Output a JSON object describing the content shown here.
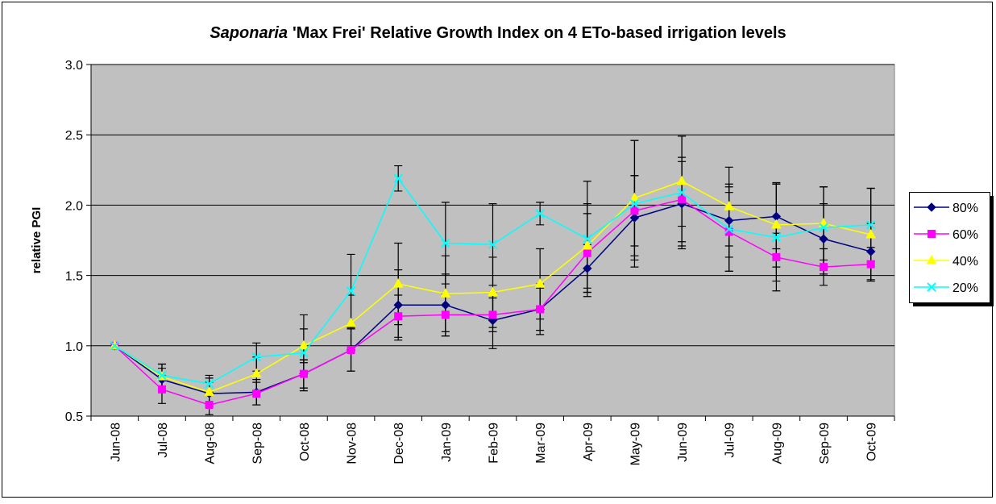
{
  "chart_data": {
    "type": "line",
    "title": [
      "Saponaria",
      "'Max Frei' Relative Growth Index on 4 ETo-based irrigation levels"
    ],
    "y_label": "relative PGI",
    "categories": [
      "Jun-08",
      "Jul-08",
      "Aug-08",
      "Sep-08",
      "Oct-08",
      "Nov-08",
      "Dec-08",
      "Jan-09",
      "Feb-09",
      "Mar-09",
      "Apr-09",
      "May-09",
      "Jun-09",
      "Jul-09",
      "Aug-09",
      "Sep-09",
      "Oct-09"
    ],
    "series": [
      {
        "name": "80%",
        "color": "#000080",
        "marker": "diamond",
        "values": [
          1.0,
          0.76,
          0.66,
          0.67,
          0.8,
          0.97,
          1.29,
          1.29,
          1.18,
          1.26,
          1.55,
          1.91,
          2.01,
          1.89,
          1.92,
          1.76,
          1.67
        ],
        "errors": [
          0,
          0.08,
          0.08,
          0.09,
          0.1,
          0.15,
          0.25,
          0.22,
          0.2,
          0.18,
          0.17,
          0.3,
          0.3,
          0.26,
          0.23,
          0.25,
          0.2
        ]
      },
      {
        "name": "60%",
        "color": "#ff00ff",
        "marker": "square",
        "values": [
          1.0,
          0.69,
          0.58,
          0.66,
          0.8,
          0.97,
          1.21,
          1.22,
          1.22,
          1.26,
          1.66,
          1.96,
          2.04,
          1.81,
          1.63,
          1.56,
          1.58
        ],
        "errors": [
          0,
          0.1,
          0.07,
          0.08,
          0.1,
          0.15,
          0.15,
          0.15,
          0.12,
          0.15,
          0.28,
          0.25,
          0.3,
          0.28,
          0.17,
          0.13,
          0.12
        ]
      },
      {
        "name": "40%",
        "color": "#ffff00",
        "marker": "triangle",
        "values": [
          1.0,
          0.78,
          0.67,
          0.8,
          1.0,
          1.16,
          1.44,
          1.37,
          1.38,
          1.44,
          1.71,
          2.05,
          2.17,
          1.99,
          1.86,
          1.87,
          1.79
        ],
        "errors": [
          0,
          0.09,
          0.1,
          0.12,
          0.12,
          0.2,
          0.29,
          0.27,
          0.25,
          0.25,
          0.3,
          0.41,
          0.32,
          0.28,
          0.3,
          0.26,
          0.33
        ]
      },
      {
        "name": "20%",
        "color": "#00ffff",
        "marker": "x",
        "values": [
          1.0,
          0.79,
          0.73,
          0.92,
          0.95,
          1.39,
          2.19,
          1.73,
          1.72,
          1.94,
          1.76,
          2.01,
          2.09,
          1.83,
          1.77,
          1.84,
          1.86
        ],
        "errors": [
          0,
          0.08,
          0.06,
          0.1,
          0.27,
          0.26,
          0.09,
          0.29,
          0.29,
          0.08,
          0.41,
          0.45,
          0.4,
          0.3,
          0.38,
          0.29,
          0.26
        ]
      }
    ],
    "ylim": [
      0.5,
      3.0
    ],
    "yticks": [
      0.5,
      {
        "value": 1,
        "label": "1.0"
      },
      1.5,
      {
        "value": 2,
        "label": "2.0"
      },
      2.5,
      {
        "value": 3,
        "label": "3.0"
      }
    ],
    "grid": true,
    "legend": "right"
  }
}
